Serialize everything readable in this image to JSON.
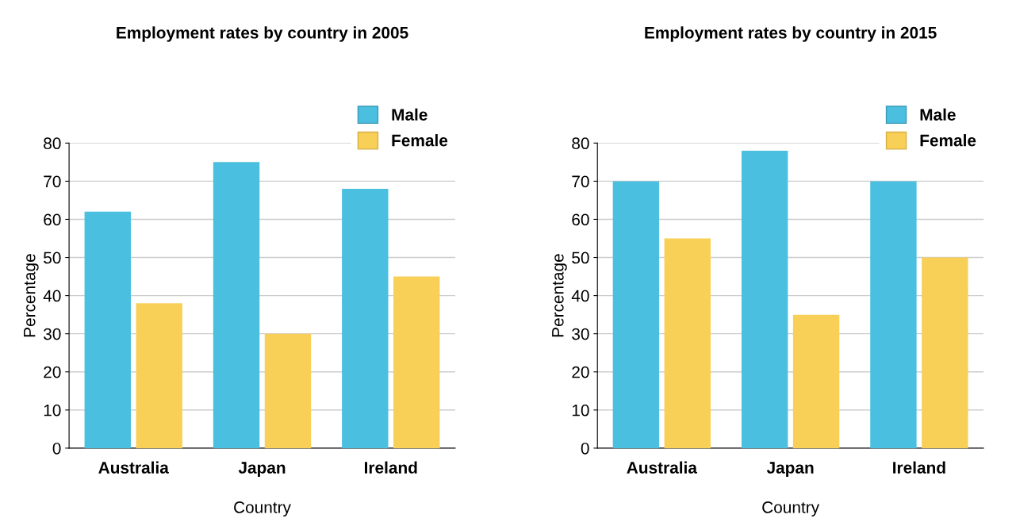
{
  "chart_data": [
    {
      "type": "bar",
      "title": "Employment rates by country in 2005",
      "xlabel": "Country",
      "ylabel": "Percentage",
      "categories": [
        "Australia",
        "Japan",
        "Ireland"
      ],
      "series": [
        {
          "name": "Male",
          "color": "#4bbfe0",
          "values": [
            62,
            75,
            68
          ]
        },
        {
          "name": "Female",
          "color": "#f8d058",
          "values": [
            38,
            30,
            45
          ]
        }
      ],
      "ylim": [
        0,
        80
      ],
      "yticks": [
        0,
        10,
        20,
        30,
        40,
        50,
        60,
        70,
        80
      ],
      "grid": "y",
      "legend": "top right"
    },
    {
      "type": "bar",
      "title": "Employment rates by country in 2015",
      "xlabel": "Country",
      "ylabel": "Percentage",
      "categories": [
        "Australia",
        "Japan",
        "Ireland"
      ],
      "series": [
        {
          "name": "Male",
          "color": "#4bbfe0",
          "values": [
            70,
            78,
            70
          ]
        },
        {
          "name": "Female",
          "color": "#f8d058",
          "values": [
            55,
            35,
            50
          ]
        }
      ],
      "ylim": [
        0,
        80
      ],
      "yticks": [
        0,
        10,
        20,
        30,
        40,
        50,
        60,
        70,
        80
      ],
      "grid": "y",
      "legend": "top right"
    }
  ]
}
